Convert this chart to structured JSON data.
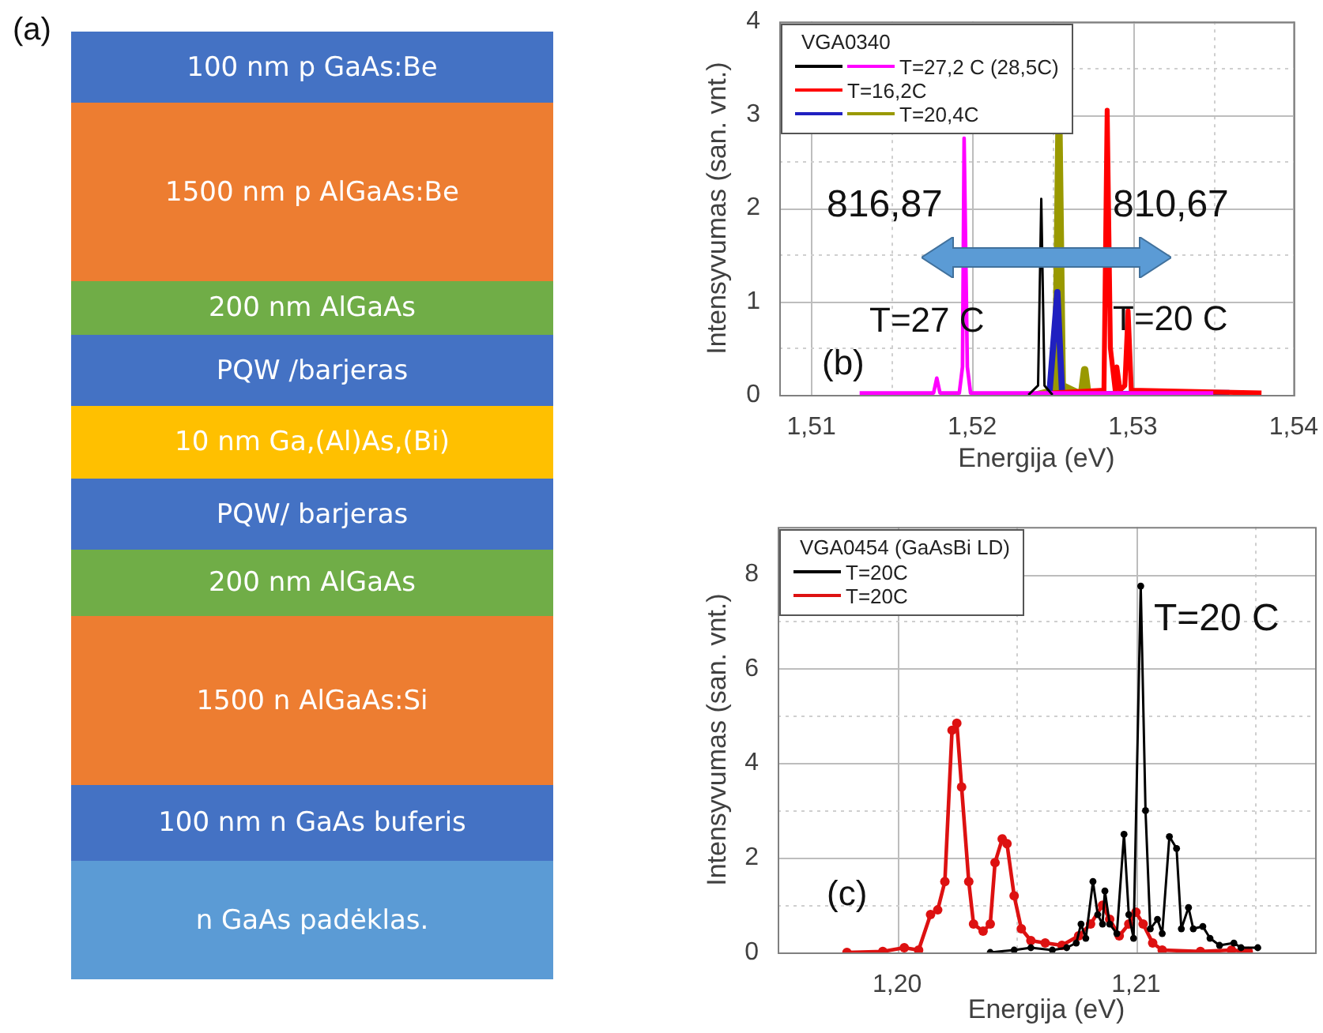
{
  "chart_data": [
    {
      "type": "other",
      "annotations": [
        "(a)"
      ],
      "categories": [
        "100 nm p GaAs:Be",
        "1500 nm p AlGaAs:Be",
        "200 nm AlGaAs",
        "PQW /barjeras",
        "10 nm Ga,(Al)As,(Bi)",
        "PQW/ barjeras",
        "200 nm AlGaAs",
        "1500 n AlGaAs:Si",
        "100 nm n GaAs buferis",
        "n GaAs padėklas."
      ],
      "colors": [
        "#4472c4",
        "#ed7d31",
        "#70ad47",
        "#4472c4",
        "#ffc000",
        "#4472c4",
        "#70ad47",
        "#ed7d31",
        "#4472c4",
        "#5b9bd5"
      ]
    },
    {
      "type": "line",
      "xlabel": "Energija (eV)",
      "ylabel": "Intensyvumas (san. vnt.)",
      "legend_title": "VGA0340",
      "legend": "top left",
      "grid": true,
      "xlim": [
        1.508,
        1.54
      ],
      "xticks": [
        {
          "value": 1.51,
          "label": "1,51"
        },
        {
          "value": 1.515,
          "label": null
        },
        {
          "value": 1.52,
          "label": "1,52"
        },
        {
          "value": 1.525,
          "label": null
        },
        {
          "value": 1.53,
          "label": "1,53"
        },
        {
          "value": 1.535,
          "label": null
        },
        {
          "value": 1.54,
          "label": "1,54"
        }
      ],
      "ylim": [
        0,
        4
      ],
      "yticks": [
        0,
        {
          "value": 0.5,
          "label": null
        },
        1,
        {
          "value": 1.5,
          "label": null
        },
        2,
        {
          "value": 2.5,
          "label": null
        },
        3,
        {
          "value": 3.5,
          "label": null
        },
        4
      ],
      "annotations": [
        "816,87",
        "810,67",
        "T=27 C",
        "T=20 C",
        "(b)"
      ],
      "series": [
        {
          "color": "#000000",
          "x": [
            1.5235,
            1.5241,
            1.5243,
            1.5245,
            1.525
          ],
          "values": [
            0,
            0.1,
            2.1,
            0.1,
            0
          ]
        },
        {
          "name": "T=27,2 C (28,5C)",
          "color": "#ff00ff",
          "x": [
            1.513,
            1.5176,
            1.5178,
            1.518,
            1.5192,
            1.5194,
            1.5195,
            1.5197,
            1.5199,
            1.535
          ],
          "values": [
            0.02,
            0.02,
            0.18,
            0.02,
            0.02,
            0.3,
            2.75,
            0.3,
            0.02,
            0.02
          ]
        },
        {
          "name": "T=16,2C",
          "color": "#ff0000",
          "x": [
            1.525,
            1.5282,
            1.5284,
            1.5286,
            1.5289,
            1.529,
            1.5292,
            1.5295,
            1.5297,
            1.5299,
            1.538
          ],
          "values": [
            0.02,
            0.05,
            3.05,
            0.5,
            0.05,
            0.3,
            0.05,
            0.1,
            0.9,
            0.05,
            0.02
          ]
        },
        {
          "color": "#2020c0",
          "x": [
            1.5248,
            1.5253,
            1.5256,
            1.534,
            1.536
          ],
          "values": [
            0,
            1.1,
            0,
            0.02,
            0.02
          ]
        },
        {
          "name": "T=20,4C",
          "color": "#999900",
          "x": [
            1.524,
            1.5252,
            1.5254,
            1.5256,
            1.5268,
            1.527,
            1.5272
          ],
          "values": [
            0,
            0.05,
            2.8,
            0.1,
            0,
            0.27,
            0
          ]
        }
      ]
    },
    {
      "type": "line",
      "xlabel": "Energija (eV)",
      "ylabel": "Intensyvumas (san. vnt.)",
      "legend_title": "VGA0454 (GaAsBi LD)",
      "legend": "top left",
      "grid": true,
      "marker": "circle",
      "xlim": [
        1.195,
        1.2175
      ],
      "xticks": [
        {
          "value": 1.2,
          "label": "1,20"
        },
        {
          "value": 1.205,
          "label": null
        },
        {
          "value": 1.21,
          "label": "1,21"
        },
        {
          "value": 1.215,
          "label": null
        }
      ],
      "ylim": [
        0,
        9
      ],
      "yticks": [
        0,
        {
          "value": 1,
          "label": null
        },
        2,
        {
          "value": 3,
          "label": null
        },
        4,
        {
          "value": 5,
          "label": null
        },
        6,
        {
          "value": 7,
          "label": null
        },
        8
      ],
      "annotations": [
        "T=20 C",
        "(c)"
      ],
      "series": [
        {
          "name": "T=20C",
          "color": "#000000",
          "x": [
            1.2039,
            1.2049,
            1.2056,
            1.2065,
            1.2071,
            1.2075,
            1.2077,
            1.2079,
            1.2082,
            1.2084,
            1.2086,
            1.2087,
            1.2089,
            1.2092,
            1.2095,
            1.2097,
            1.2099,
            1.2102,
            1.2104,
            1.2106,
            1.2109,
            1.2111,
            1.2114,
            1.2117,
            1.2119,
            1.2122,
            1.2124,
            1.2128,
            1.2131,
            1.2135,
            1.2141,
            1.2144,
            1.2151
          ],
          "values": [
            0,
            0.05,
            0.1,
            0.05,
            0.1,
            0.2,
            0.6,
            0.3,
            1.5,
            0.8,
            0.6,
            1.3,
            0.6,
            0.4,
            2.5,
            0.8,
            0.3,
            7.75,
            3,
            0.5,
            0.7,
            0.4,
            2.45,
            2.2,
            0.5,
            0.95,
            0.5,
            0.55,
            0.3,
            0.15,
            0.2,
            0.1,
            0.1
          ]
        },
        {
          "name": "T=20C",
          "color": "#dd1111",
          "x": [
            1.1979,
            1.1994,
            1.2003,
            1.2009,
            1.2014,
            1.2017,
            1.202,
            1.2023,
            1.2025,
            1.2027,
            1.203,
            1.2032,
            1.2036,
            1.2039,
            1.2041,
            1.2044,
            1.2046,
            1.2049,
            1.2052,
            1.2056,
            1.2062,
            1.2069,
            1.2076,
            1.2081,
            1.2086,
            1.2089,
            1.2093,
            1.2097,
            1.21,
            1.2103,
            1.2107,
            1.2111,
            1.2127,
            1.214,
            1.2147
          ],
          "values": [
            0,
            0.02,
            0.1,
            0.05,
            0.8,
            0.9,
            1.5,
            4.7,
            4.85,
            3.5,
            1.5,
            0.6,
            0.45,
            0.6,
            1.9,
            2.4,
            2.3,
            1.2,
            0.5,
            0.25,
            0.2,
            0.15,
            0.35,
            0.6,
            1,
            0.7,
            0.35,
            0.6,
            0.85,
            0.6,
            0.2,
            0.05,
            0.02,
            0.05,
            0.02
          ]
        }
      ]
    }
  ]
}
